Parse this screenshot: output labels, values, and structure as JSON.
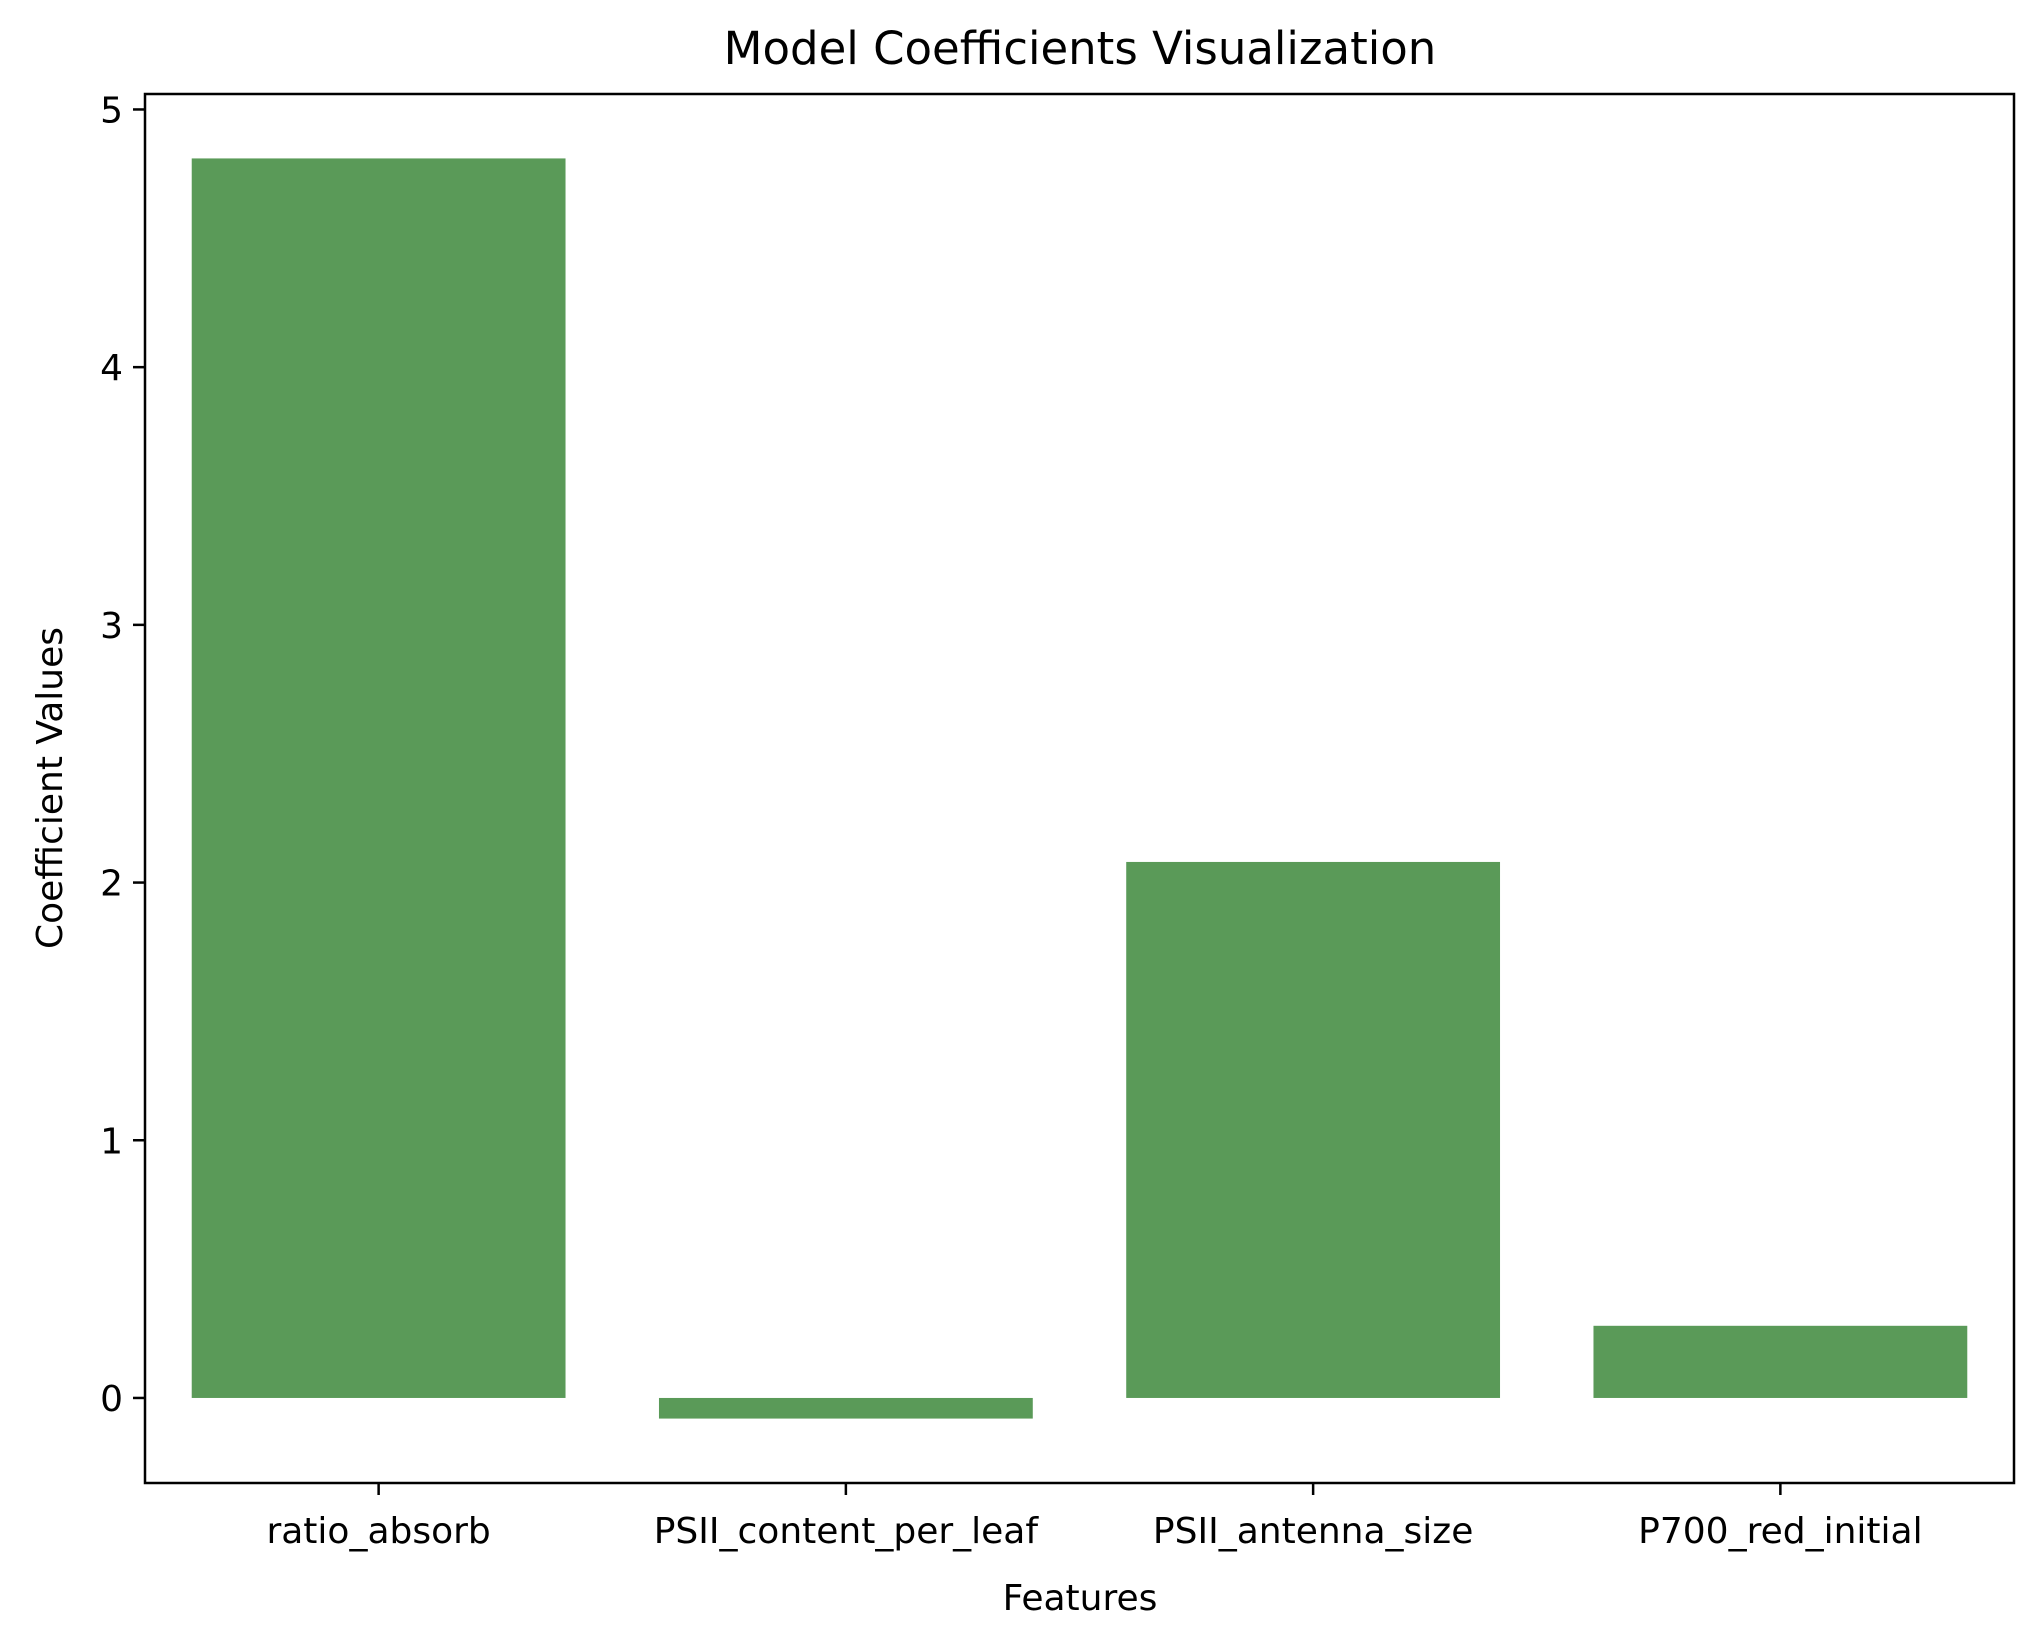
{
  "chart_data": {
    "type": "bar",
    "title": "Model Coefficients Visualization",
    "xlabel": "Features",
    "ylabel": "Coefficient Values",
    "categories": [
      "ratio_absorb",
      "PSII_content_per_leaf",
      "PSII_antenna_size",
      "P700_red_initial"
    ],
    "values": [
      4.81,
      -0.08,
      2.08,
      0.28
    ],
    "ylim": [
      -0.33,
      5.06
    ],
    "yticks": [
      0,
      1,
      2,
      3,
      4,
      5
    ],
    "ytick_labels": [
      "0",
      "1",
      "2",
      "3",
      "4",
      "5"
    ],
    "bar_color": "#5a9a58",
    "grid": false,
    "legend": "none"
  }
}
